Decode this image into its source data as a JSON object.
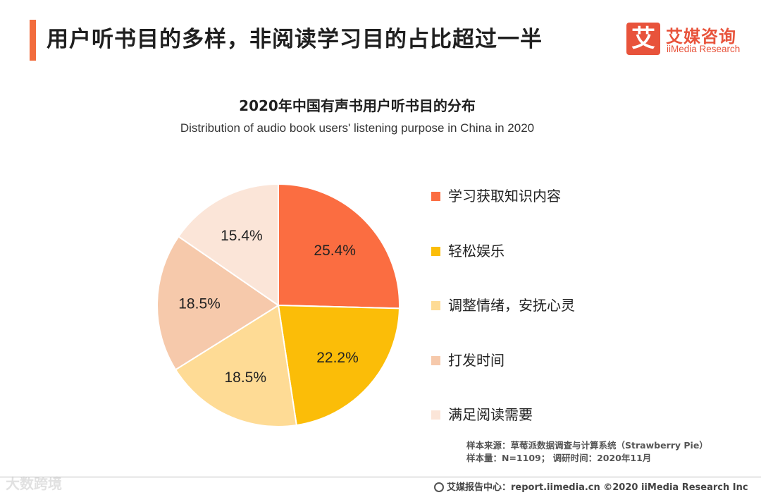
{
  "header": {
    "title": "用户听书目的多样，非阅读学习目的占比超过一半"
  },
  "logo": {
    "mark": "艾",
    "name": "艾媒咨询",
    "sub": "iiMedia Research"
  },
  "chart_data": {
    "type": "pie",
    "title": "2020年中国有声书用户听书目的分布",
    "subtitle": "Distribution of audio book users' listening purpose in China in 2020",
    "slices": [
      {
        "label": "学习获取知识内容",
        "value": 25.4,
        "display": "25.4%",
        "color": "#fb6d41"
      },
      {
        "label": "轻松娱乐",
        "value": 22.2,
        "display": "22.2%",
        "color": "#fbbd08"
      },
      {
        "label": "调整情绪，安抚心灵",
        "value": 18.5,
        "display": "18.5%",
        "color": "#fedb95"
      },
      {
        "label": "打发时间",
        "value": 18.5,
        "display": "18.5%",
        "color": "#f6c9ab"
      },
      {
        "label": "满足阅读需要",
        "value": 15.4,
        "display": "15.4%",
        "color": "#fbe5d8"
      }
    ],
    "legend_position": "right",
    "start_angle_deg": 0,
    "direction": "clockwise"
  },
  "source": {
    "line1": "样本来源：草莓派数据调查与计算系统（Strawberry Pie）",
    "line2": "样本量：N=1109；  调研时间：2020年11月"
  },
  "footer": {
    "text": "艾媒报告中心：report.iimedia.cn   ©2020  iiMedia Research  Inc"
  },
  "watermark": {
    "text": "大数跨境"
  }
}
